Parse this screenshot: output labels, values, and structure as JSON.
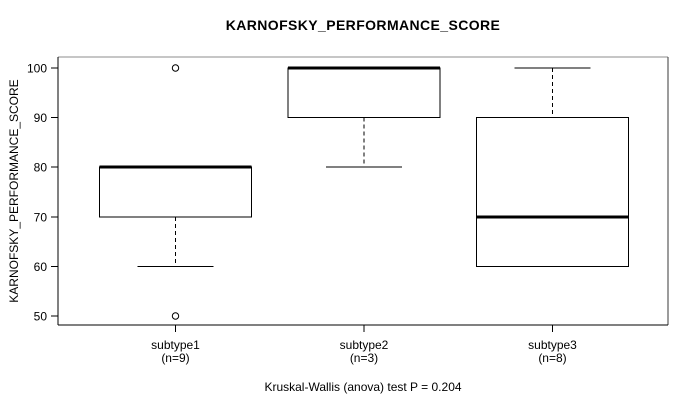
{
  "chart_data": {
    "type": "boxplot",
    "title": "KARNOFSKY_PERFORMANCE_SCORE",
    "ylabel": "KARNOFSKY_PERFORMANCE_SCORE",
    "xlabel": "",
    "ylim": [
      50,
      100
    ],
    "yticks": [
      50,
      60,
      70,
      80,
      90,
      100
    ],
    "grid": "off",
    "annotation": "Kruskal-Wallis (anova) test P = 0.204",
    "groups": [
      {
        "label": "subtype1",
        "sublabel": "(n=9)",
        "n": 9,
        "q1": 70,
        "median": 80,
        "q3": 80,
        "whisker_low": 60,
        "whisker_high": 80,
        "outliers": [
          100,
          50
        ]
      },
      {
        "label": "subtype2",
        "sublabel": "(n=3)",
        "n": 3,
        "q1": 90,
        "median": 100,
        "q3": 100,
        "whisker_low": 80,
        "whisker_high": 100,
        "outliers": []
      },
      {
        "label": "subtype3",
        "sublabel": "(n=8)",
        "n": 8,
        "q1": 60,
        "median": 70,
        "q3": 90,
        "whisker_low": 60,
        "whisker_high": 100,
        "outliers": []
      }
    ],
    "colors": {
      "line": "#000000",
      "box_fill": "#ffffff",
      "frame_top": "#8c8c8c",
      "background": "#ffffff"
    }
  }
}
